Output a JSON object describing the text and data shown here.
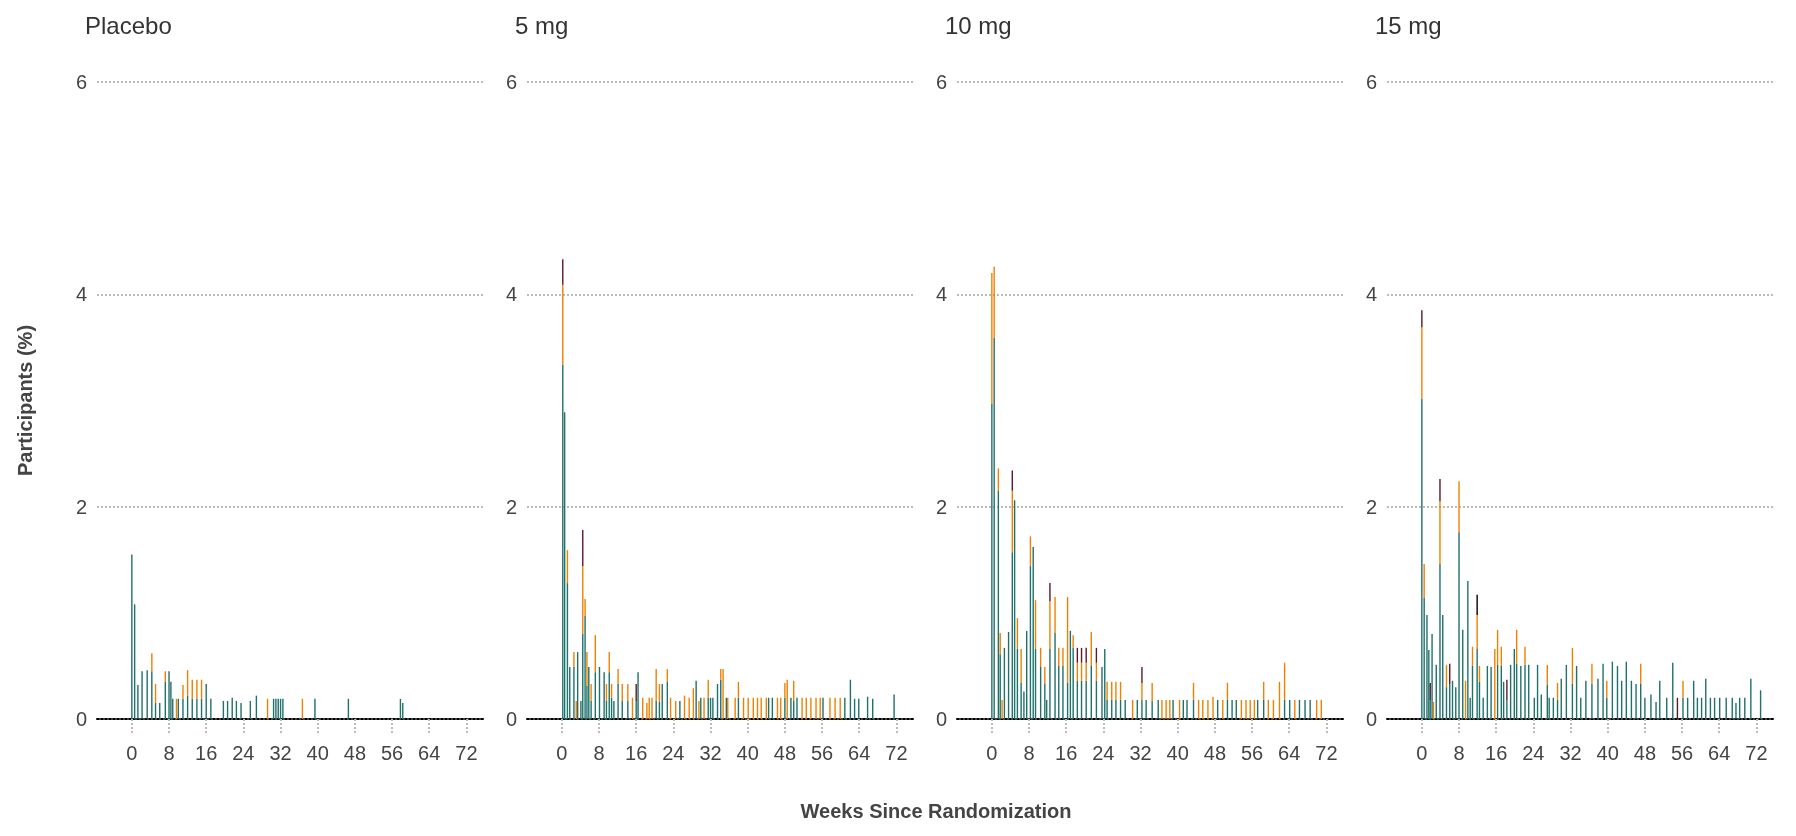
{
  "chart_data": [
    {
      "type": "bar",
      "title": "Placebo",
      "ylabel": "Participants (%)",
      "stacked": true,
      "grid": "y",
      "xlim": [
        -7.5,
        76
      ],
      "xticks": [
        0,
        8,
        16,
        24,
        32,
        40,
        48,
        56,
        64,
        72
      ],
      "ylim": [
        0,
        6
      ],
      "yticks": [
        0,
        2,
        4,
        6
      ],
      "x": [
        0,
        0.6,
        1.3,
        2.2,
        3.3,
        4.3,
        5.1,
        6,
        7.2,
        8,
        8.4,
        8.8,
        9.6,
        10,
        11,
        12,
        13,
        14,
        15,
        16,
        17,
        19.7,
        20.6,
        21.6,
        22.5,
        23.5,
        25.5,
        26.8,
        29.2,
        30.5,
        31,
        31.5,
        32,
        32.5,
        36.7,
        39.4,
        46.6,
        57.8,
        58.3
      ],
      "series": [
        {
          "color": "#1f716c",
          "values": [
            1.55,
            1.08,
            0.32,
            0.45,
            0.46,
            0.45,
            0.15,
            0.15,
            0.35,
            0.45,
            0.35,
            0.19,
            null,
            0.19,
            0.19,
            0.22,
            0.19,
            0.19,
            0.19,
            0.33,
            0.19,
            0.17,
            0.17,
            0.2,
            0.17,
            0.15,
            0.17,
            0.22,
            null,
            0.19,
            0.19,
            0.19,
            0.19,
            0.19,
            null,
            0.19,
            0.19,
            0.19,
            0.15
          ]
        },
        {
          "color": "#f08000",
          "values": [
            null,
            null,
            null,
            null,
            null,
            0.17,
            0.18,
            null,
            0.1,
            null,
            null,
            null,
            0.19,
            null,
            0.13,
            0.24,
            0.18,
            0.18,
            0.18,
            null,
            null,
            null,
            null,
            null,
            null,
            null,
            null,
            null,
            0.19,
            null,
            null,
            null,
            null,
            null,
            0.19,
            null,
            null,
            null,
            null
          ]
        }
      ]
    },
    {
      "type": "bar",
      "title": "5 mg",
      "stacked": true,
      "grid": "y",
      "xlim": [
        -7.5,
        76
      ],
      "xticks": [
        0,
        8,
        16,
        24,
        32,
        40,
        48,
        56,
        64,
        72
      ],
      "ylim": [
        0,
        6
      ],
      "yticks": [
        0,
        2,
        4,
        6
      ],
      "x": [
        0.2,
        0.6,
        1.2,
        1.7,
        2.6,
        3.1,
        3.4,
        4.1,
        4.5,
        5,
        5.4,
        5.8,
        6.3,
        7.2,
        8.1,
        9.1,
        9.6,
        10.2,
        10.7,
        11.2,
        12.1,
        13,
        14.2,
        15.2,
        16,
        16.4,
        17.4,
        18.3,
        18.8,
        19.4,
        20.3,
        21,
        21.6,
        22.7,
        23.4,
        24.5,
        25.4,
        26.4,
        27.4,
        28.3,
        28.9,
        29.5,
        29.9,
        30.6,
        31.5,
        32,
        32.5,
        33.5,
        34.2,
        34.7,
        35.4,
        35.7,
        37.3,
        38,
        39.1,
        40.1,
        41.2,
        42.1,
        42.9,
        44,
        44.5,
        45.3,
        46.4,
        47.1,
        48,
        48.5,
        49.3,
        49.9,
        50.6,
        51.7,
        52.6,
        53.6,
        54.7,
        55.6,
        56.2,
        57.7,
        58.8,
        59.9,
        60.9,
        62.1,
        63,
        63.9,
        65.8,
        66.9,
        71.5
      ],
      "series": [
        {
          "color": "#1f716c",
          "values": [
            3.34,
            2.89,
            1.28,
            0.49,
            0.49,
            null,
            0.63,
            0.17,
            0.8,
            0.97,
            0.31,
            0.49,
            0.17,
            0.44,
            0.49,
            0.44,
            0.17,
            0.44,
            0.2,
            0.17,
            0.33,
            0.17,
            0.17,
            null,
            0.17,
            0.44,
            null,
            null,
            null,
            null,
            0.17,
            0.16,
            0.33,
            0.35,
            null,
            null,
            0.17,
            null,
            null,
            null,
            0.36,
            null,
            0.2,
            null,
            0.2,
            0.2,
            0.2,
            0.33,
            0.37,
            null,
            0.2,
            null,
            null,
            0.2,
            null,
            null,
            null,
            null,
            null,
            null,
            0.2,
            0.2,
            null,
            null,
            0.2,
            null,
            0.2,
            0.17,
            0.2,
            null,
            null,
            null,
            null,
            null,
            0.2,
            null,
            null,
            null,
            0.2,
            0.37,
            0.19,
            0.19,
            0.21,
            0.19,
            0.23
          ]
        },
        {
          "color": "#f08000",
          "values": [
            0.75,
            null,
            0.31,
            null,
            0.14,
            0.17,
            null,
            null,
            0.64,
            0.16,
            0.32,
            null,
            0.16,
            0.35,
            null,
            null,
            0.16,
            0.19,
            0.13,
            null,
            0.14,
            0.16,
            0.16,
            0.2,
            null,
            null,
            0.2,
            0.15,
            0.2,
            0.2,
            0.3,
            0.17,
            null,
            0.12,
            0.2,
            0.17,
            null,
            0.22,
            0.2,
            0.29,
            null,
            0.17,
            null,
            0.2,
            0.17,
            null,
            null,
            null,
            0.1,
            0.47,
            null,
            0.2,
            0.2,
            0.15,
            0.2,
            0.2,
            0.2,
            0.2,
            0.2,
            0.2,
            null,
            null,
            0.2,
            0.2,
            0.14,
            0.37,
            null,
            0.19,
            null,
            0.2,
            0.2,
            0.2,
            0.2,
            0.2,
            null,
            0.2,
            0.2,
            0.2,
            null,
            null,
            null,
            null,
            null,
            null,
            null
          ]
        },
        {
          "color": "#5a1a2a",
          "values": [
            0.24,
            null,
            null,
            null,
            null,
            null,
            null,
            null,
            0.34,
            null,
            null,
            null,
            null,
            null,
            null,
            null,
            null,
            null,
            null,
            null,
            null,
            null,
            null,
            null,
            0.16,
            null,
            null,
            null,
            null,
            null,
            null,
            null,
            null,
            null,
            null,
            null,
            null,
            null,
            null,
            null,
            null,
            null,
            null,
            null,
            null,
            null,
            null,
            null,
            null,
            null,
            null,
            null,
            null,
            null,
            null,
            null,
            null,
            null,
            null,
            null,
            null,
            null,
            null,
            null,
            null,
            null,
            null,
            null,
            null,
            null,
            null,
            null,
            null,
            null,
            null,
            null,
            null,
            null,
            null,
            null,
            null,
            null,
            null,
            null,
            null
          ]
        }
      ]
    },
    {
      "type": "bar",
      "title": "10 mg",
      "xlabel": "Weeks Since Randomization",
      "stacked": true,
      "grid": "y",
      "xlim": [
        -7.5,
        76
      ],
      "xticks": [
        0,
        8,
        16,
        24,
        32,
        40,
        48,
        56,
        64,
        72
      ],
      "ylim": [
        0,
        6
      ],
      "yticks": [
        0,
        2,
        4,
        6
      ],
      "x": [
        0,
        0.5,
        1.4,
        1.8,
        2.2,
        2.7,
        3.6,
        4.4,
        4.9,
        5.5,
        6.3,
        6.9,
        7.5,
        8.3,
        8.9,
        9.4,
        10.5,
        11.4,
        11.8,
        12.5,
        13.6,
        14.4,
        15.3,
        16.3,
        16.9,
        17.5,
        18.4,
        19.3,
        20.3,
        21.4,
        22.5,
        23.7,
        24.3,
        24.8,
        25.8,
        26.7,
        27.7,
        28.7,
        30.3,
        31.3,
        32.3,
        33.2,
        34.5,
        35.8,
        36.6,
        37.5,
        38.3,
        39,
        40.4,
        41.2,
        42,
        43.4,
        44.5,
        45.4,
        46.5,
        47.6,
        48.6,
        49.7,
        50.7,
        51.7,
        52.6,
        53.7,
        54.7,
        55.6,
        56.5,
        57.2,
        58.5,
        59.5,
        60.6,
        61.9,
        63,
        64.1,
        65.2,
        66.2,
        67.4,
        68.5,
        69.9,
        70.9
      ],
      "series": [
        {
          "color": "#1f716c",
          "values": [
            2.97,
            3.59,
            2.15,
            0.61,
            null,
            0.67,
            0.82,
            1.57,
            2.06,
            0.66,
            0.34,
            0.26,
            0.83,
            1.44,
            1.62,
            0.66,
            0.49,
            0.33,
            0.18,
            0.66,
            0.81,
            0.5,
            0.5,
            0.34,
            0.83,
            0.67,
            0.36,
            0.36,
            0.36,
            0.5,
            0.36,
            0.49,
            0.66,
            0.18,
            0.18,
            0.18,
            0.18,
            0.18,
            null,
            0.18,
            0.18,
            0.18,
            0.17,
            0.18,
            null,
            null,
            null,
            0.18,
            null,
            0.18,
            0.18,
            0.18,
            null,
            null,
            null,
            null,
            0.18,
            null,
            0.18,
            0.18,
            0.18,
            null,
            null,
            null,
            null,
            0.18,
            0.18,
            null,
            null,
            null,
            0.18,
            0.18,
            null,
            0.18,
            0.18,
            0.18,
            null,
            null
          ]
        },
        {
          "color": "#f08000",
          "values": [
            1.23,
            0.67,
            0.21,
            0.2,
            0.18,
            null,
            null,
            0.58,
            null,
            0.29,
            0.32,
            null,
            null,
            0.28,
            null,
            0.46,
            0.18,
            0.16,
            null,
            0.45,
            0.34,
            0.17,
            0.17,
            0.81,
            null,
            0.12,
            0.17,
            0.17,
            0.17,
            0.32,
            0.17,
            null,
            null,
            0.17,
            0.17,
            0.17,
            0.17,
            null,
            0.18,
            null,
            0.16,
            null,
            0.17,
            null,
            0.18,
            0.18,
            0.18,
            null,
            0.18,
            null,
            null,
            0.16,
            0.18,
            0.18,
            0.18,
            0.21,
            null,
            0.18,
            0.16,
            null,
            null,
            0.18,
            0.18,
            0.18,
            0.18,
            null,
            0.17,
            0.18,
            0.18,
            0.35,
            0.35,
            null,
            0.18,
            null,
            null,
            null,
            0.18,
            0.18
          ]
        },
        {
          "color": "#5a1a2a",
          "values": [
            null,
            null,
            null,
            null,
            null,
            null,
            null,
            0.19,
            null,
            null,
            null,
            null,
            null,
            null,
            null,
            null,
            null,
            null,
            null,
            0.17,
            null,
            null,
            null,
            null,
            null,
            null,
            0.14,
            0.14,
            0.14,
            null,
            0.14,
            null,
            null,
            null,
            null,
            null,
            null,
            null,
            null,
            null,
            0.15,
            null,
            null,
            null,
            null,
            null,
            null,
            null,
            null,
            null,
            null,
            null,
            null,
            null,
            null,
            null,
            null,
            null,
            null,
            null,
            null,
            null,
            null,
            null,
            null,
            null,
            null,
            null,
            null,
            null,
            null,
            null,
            null,
            null,
            null,
            null,
            null,
            null
          ]
        }
      ]
    },
    {
      "type": "bar",
      "title": "15 mg",
      "stacked": true,
      "grid": "y",
      "xlim": [
        -7.5,
        76
      ],
      "xticks": [
        0,
        8,
        16,
        24,
        32,
        40,
        48,
        56,
        64,
        72
      ],
      "ylim": [
        0,
        6
      ],
      "yticks": [
        0,
        2,
        4,
        6
      ],
      "x": [
        0,
        0.5,
        1.1,
        1.5,
        1.8,
        2.2,
        2.5,
        3.1,
        3.9,
        4.5,
        5.3,
        6,
        6.6,
        7.3,
        8,
        8.8,
        9.4,
        9.9,
        10.4,
        10.9,
        11.9,
        12.4,
        13.2,
        14.1,
        14.9,
        15.7,
        16.3,
        17.1,
        17.6,
        18.3,
        19.1,
        19.9,
        20.4,
        21.3,
        22.2,
        23,
        24.2,
        24.9,
        25.7,
        27,
        27.4,
        28.3,
        29.2,
        30,
        31.1,
        32.4,
        33.3,
        34.2,
        35.3,
        36.6,
        37.9,
        39,
        39.8,
        41,
        42.1,
        43,
        44,
        45.1,
        46.1,
        47.1,
        48,
        49.3,
        50.4,
        51.2,
        52.7,
        54,
        55,
        56.2,
        57.2,
        58.5,
        59.3,
        60.2,
        61.1,
        62.1,
        63,
        64.1,
        65.5,
        66.8,
        67.6,
        68.4,
        69.5,
        70.8,
        72.9
      ],
      "series": [
        {
          "color": "#1f716c",
          "values": [
            3.02,
            1.14,
            0.98,
            0.65,
            0.18,
            0.8,
            null,
            0.51,
            1.46,
            0.98,
            0.3,
            0.33,
            0.36,
            0.3,
            1.76,
            0.84,
            null,
            1.3,
            0.2,
            0.5,
            0.66,
            0.35,
            0.2,
            0.5,
            0.49,
            null,
            0.51,
            0.5,
            0.35,
            0.18,
            0.51,
            0.66,
            0.52,
            0.5,
            0.51,
            0.51,
            0.2,
            0.51,
            0.23,
            0.32,
            0.2,
            0.2,
            0.18,
            0.38,
            0.51,
            0.33,
            0.5,
            0.2,
            0.36,
            0.33,
            0.38,
            0.52,
            0.2,
            0.54,
            0.5,
            0.36,
            0.54,
            0.36,
            0.33,
            0.33,
            0.2,
            0.23,
            0.16,
            0.36,
            0.2,
            0.53,
            null,
            0.2,
            0.2,
            0.36,
            0.2,
            0.2,
            0.38,
            0.2,
            0.2,
            0.2,
            0.2,
            0.2,
            0.15,
            0.2,
            0.2,
            0.38,
            0.27
          ]
        },
        {
          "color": "#f08000",
          "values": [
            0.67,
            0.32,
            null,
            null,
            null,
            null,
            0.16,
            null,
            0.59,
            null,
            0.21,
            null,
            null,
            null,
            0.48,
            null,
            0.36,
            null,
            null,
            0.18,
            0.32,
            0.15,
            null,
            null,
            null,
            0.66,
            0.33,
            0.18,
            null,
            null,
            null,
            null,
            0.32,
            null,
            0.17,
            null,
            null,
            null,
            null,
            0.19,
            null,
            null,
            0.16,
            null,
            null,
            0.34,
            null,
            null,
            null,
            0.19,
            null,
            null,
            0.16,
            null,
            null,
            null,
            null,
            null,
            null,
            0.19,
            null,
            null,
            null,
            null,
            null,
            null,
            null,
            0.16,
            null,
            null,
            null,
            null,
            null,
            null,
            null,
            null,
            null,
            null,
            null,
            null,
            null,
            null,
            null
          ]
        },
        {
          "color": "#5a1a2a",
          "values": [
            0.16,
            null,
            null,
            null,
            0.16,
            null,
            null,
            null,
            0.21,
            null,
            null,
            0.19,
            null,
            null,
            null,
            null,
            null,
            null,
            null,
            null,
            null,
            null,
            null,
            null,
            null,
            null,
            null,
            null,
            null,
            0.19,
            null,
            null,
            null,
            null,
            null,
            null,
            null,
            null,
            null,
            null,
            null,
            null,
            null,
            null,
            null,
            null,
            null,
            null,
            null,
            null,
            null,
            null,
            null,
            null,
            null,
            null,
            null,
            null,
            null,
            null,
            null,
            null,
            null,
            null,
            null,
            null,
            0.2,
            null,
            null,
            null,
            null,
            null,
            null,
            null,
            null,
            null,
            null,
            null,
            null,
            null,
            null,
            null,
            null
          ]
        },
        {
          "color": "#000000",
          "values": [
            null,
            null,
            null,
            null,
            null,
            null,
            null,
            null,
            null,
            null,
            null,
            null,
            null,
            null,
            null,
            null,
            null,
            null,
            null,
            null,
            0.19,
            null,
            null,
            null,
            null,
            null,
            null,
            null,
            null,
            null,
            null,
            null,
            null,
            null,
            null,
            null,
            null,
            null,
            null,
            null,
            null,
            null,
            null,
            null,
            null,
            null,
            null,
            null,
            null,
            null,
            null,
            null,
            null,
            null,
            null,
            null,
            null,
            null,
            null,
            null,
            null,
            null,
            null,
            null,
            null,
            null,
            null,
            null,
            null,
            null,
            null,
            null,
            null,
            null,
            null,
            null,
            null,
            null,
            null,
            null,
            null,
            null,
            null
          ]
        }
      ]
    }
  ]
}
